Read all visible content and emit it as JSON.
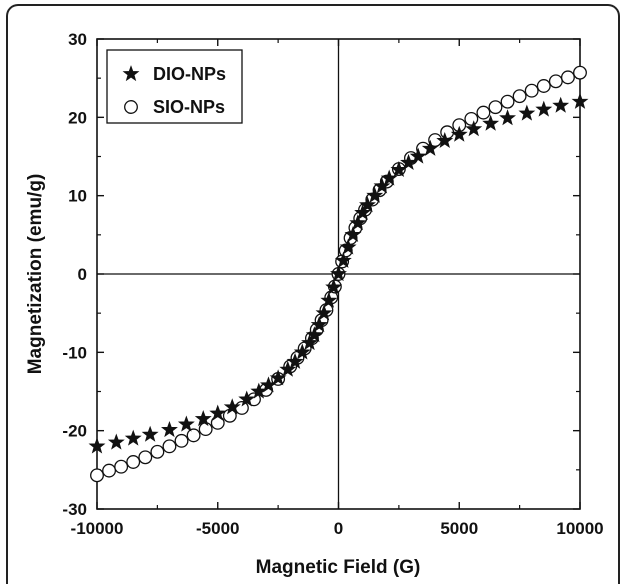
{
  "chart_data": {
    "type": "scatter",
    "title": "",
    "xlabel": "Magnetic Field (G)",
    "ylabel": "Magnetization (emu/g)",
    "xlim": [
      -10000,
      10000
    ],
    "ylim": [
      -30,
      30
    ],
    "xticks": [
      -10000,
      -5000,
      0,
      5000,
      10000
    ],
    "yticks": [
      -30,
      -20,
      -10,
      0,
      10,
      20,
      30
    ],
    "xtick_labels": [
      "-10000",
      "-5000",
      "0",
      "5000",
      "10000"
    ],
    "ytick_labels": [
      "-30",
      "-20",
      "-10",
      "0",
      "10",
      "20",
      "30"
    ],
    "grid": false,
    "legend_position": "top-left",
    "series": [
      {
        "name": "DIO-NPs",
        "marker": "filled-star",
        "color": "#111111",
        "x": [
          -10000,
          -9200,
          -8500,
          -7800,
          -7000,
          -6300,
          -5600,
          -5000,
          -4400,
          -3800,
          -3300,
          -2900,
          -2500,
          -2100,
          -1800,
          -1500,
          -1200,
          -1000,
          -800,
          -600,
          -400,
          -200,
          0,
          200,
          400,
          600,
          800,
          1000,
          1200,
          1500,
          1800,
          2100,
          2500,
          2900,
          3300,
          3800,
          4400,
          5000,
          5600,
          6300,
          7000,
          7800,
          8500,
          9200,
          10000
        ],
        "y": [
          -22.0,
          -21.5,
          -21.0,
          -20.5,
          -19.9,
          -19.2,
          -18.5,
          -17.8,
          -17.0,
          -16.0,
          -15.0,
          -14.2,
          -13.3,
          -12.2,
          -11.2,
          -10.0,
          -8.8,
          -7.8,
          -6.5,
          -5.0,
          -3.4,
          -1.7,
          0.0,
          1.7,
          3.4,
          5.0,
          6.5,
          7.8,
          8.8,
          10.0,
          11.2,
          12.2,
          13.3,
          14.2,
          15.0,
          16.0,
          17.0,
          17.8,
          18.5,
          19.2,
          19.9,
          20.5,
          21.0,
          21.5,
          22.0
        ]
      },
      {
        "name": "SIO-NPs",
        "marker": "open-circle",
        "color": "#111111",
        "x": [
          -10000,
          -9500,
          -9000,
          -8500,
          -8000,
          -7500,
          -7000,
          -6500,
          -6000,
          -5500,
          -5000,
          -4500,
          -4000,
          -3500,
          -3000,
          -2500,
          -2000,
          -1700,
          -1400,
          -1100,
          -900,
          -700,
          -500,
          -300,
          -150,
          0,
          150,
          300,
          500,
          700,
          900,
          1100,
          1400,
          1700,
          2000,
          2500,
          3000,
          3500,
          4000,
          4500,
          5000,
          5500,
          6000,
          6500,
          7000,
          7500,
          8000,
          8500,
          9000,
          9500,
          10000
        ],
        "y": [
          -25.7,
          -25.1,
          -24.6,
          -24.0,
          -23.4,
          -22.7,
          -22.0,
          -21.3,
          -20.6,
          -19.8,
          -19.0,
          -18.1,
          -17.1,
          -16.0,
          -14.8,
          -13.4,
          -11.8,
          -10.7,
          -9.5,
          -8.2,
          -7.1,
          -5.9,
          -4.6,
          -3.0,
          -1.6,
          0.0,
          1.6,
          3.0,
          4.6,
          5.9,
          7.1,
          8.2,
          9.5,
          10.7,
          11.8,
          13.4,
          14.8,
          16.0,
          17.1,
          18.1,
          19.0,
          19.8,
          20.6,
          21.3,
          22.0,
          22.7,
          23.4,
          24.0,
          24.6,
          25.1,
          25.7
        ]
      }
    ]
  }
}
